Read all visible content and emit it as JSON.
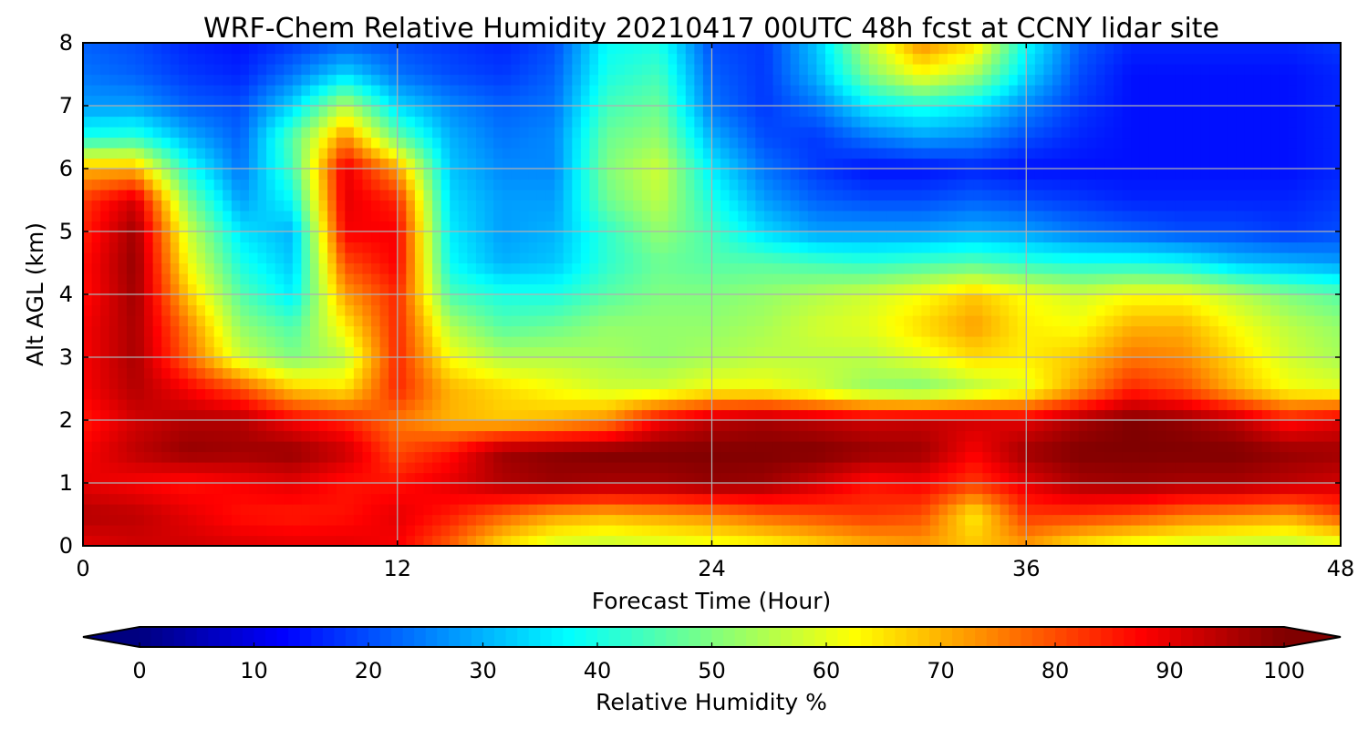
{
  "chart_data": {
    "type": "heatmap",
    "title": "WRF-Chem Relative Humidity 20210417 00UTC 48h fcst at CCNY lidar site",
    "xlabel": "Forecast Time (Hour)",
    "ylabel": "Alt AGL (km)",
    "xlim": [
      0,
      48
    ],
    "ylim": [
      0,
      8
    ],
    "x_ticks": [
      0,
      12,
      24,
      36,
      48
    ],
    "y_ticks": [
      0,
      1,
      2,
      3,
      4,
      5,
      6,
      7,
      8
    ],
    "grid": true,
    "colorbar": {
      "label": "Relative Humidity %",
      "orientation": "horizontal",
      "placement": "bottom",
      "ticks": [
        0,
        10,
        20,
        30,
        40,
        50,
        60,
        70,
        80,
        90,
        100
      ],
      "range": [
        0,
        100
      ],
      "extend": "both",
      "colormap": "jet"
    },
    "x": [
      0,
      2,
      4,
      6,
      8,
      10,
      12,
      14,
      16,
      18,
      20,
      22,
      24,
      26,
      28,
      30,
      32,
      34,
      36,
      38,
      40,
      42,
      44,
      46,
      48
    ],
    "y": [
      0,
      0.5,
      1,
      1.5,
      2,
      2.5,
      3,
      3.5,
      4,
      4.5,
      5,
      5.5,
      6,
      6.5,
      7,
      7.5,
      8
    ],
    "z": [
      [
        90,
        92,
        92,
        91,
        90,
        90,
        88,
        78,
        65,
        58,
        56,
        58,
        60,
        62,
        66,
        70,
        72,
        68,
        72,
        64,
        60,
        58,
        56,
        55,
        58
      ],
      [
        95,
        94,
        90,
        86,
        85,
        86,
        90,
        85,
        78,
        72,
        70,
        72,
        74,
        78,
        80,
        82,
        80,
        64,
        82,
        82,
        80,
        76,
        74,
        72,
        80
      ],
      [
        90,
        88,
        86,
        88,
        90,
        86,
        86,
        90,
        95,
        97,
        96,
        96,
        98,
        97,
        92,
        86,
        88,
        82,
        90,
        96,
        97,
        96,
        96,
        94,
        92
      ],
      [
        88,
        94,
        98,
        97,
        98,
        93,
        80,
        86,
        97,
        99,
        100,
        100,
        100,
        100,
        100,
        98,
        97,
        88,
        97,
        100,
        100,
        100,
        100,
        98,
        97
      ],
      [
        85,
        92,
        95,
        95,
        88,
        84,
        76,
        70,
        68,
        70,
        74,
        88,
        94,
        96,
        94,
        92,
        93,
        92,
        90,
        96,
        100,
        98,
        94,
        86,
        90
      ],
      [
        88,
        95,
        88,
        80,
        68,
        65,
        84,
        70,
        66,
        62,
        58,
        58,
        62,
        62,
        58,
        52,
        50,
        55,
        60,
        72,
        84,
        80,
        70,
        62,
        60
      ],
      [
        88,
        96,
        78,
        58,
        50,
        56,
        84,
        62,
        55,
        55,
        54,
        52,
        54,
        56,
        56,
        56,
        60,
        66,
        64,
        68,
        76,
        74,
        66,
        58,
        54
      ],
      [
        88,
        96,
        75,
        52,
        45,
        64,
        84,
        55,
        46,
        48,
        52,
        52,
        52,
        54,
        58,
        60,
        66,
        72,
        64,
        62,
        70,
        70,
        62,
        56,
        52
      ],
      [
        86,
        97,
        68,
        46,
        36,
        72,
        84,
        45,
        40,
        40,
        46,
        50,
        50,
        52,
        55,
        58,
        62,
        68,
        62,
        58,
        62,
        62,
        56,
        50,
        46
      ],
      [
        86,
        98,
        62,
        40,
        32,
        80,
        88,
        38,
        30,
        32,
        42,
        48,
        46,
        46,
        44,
        42,
        44,
        46,
        42,
        40,
        40,
        38,
        32,
        30,
        28
      ],
      [
        84,
        97,
        58,
        35,
        30,
        88,
        88,
        36,
        28,
        30,
        42,
        52,
        44,
        34,
        28,
        28,
        28,
        30,
        28,
        24,
        22,
        20,
        20,
        18,
        20
      ],
      [
        82,
        92,
        50,
        28,
        38,
        90,
        84,
        34,
        28,
        28,
        48,
        56,
        40,
        28,
        22,
        20,
        20,
        22,
        20,
        18,
        16,
        16,
        16,
        16,
        18
      ],
      [
        70,
        70,
        40,
        24,
        44,
        90,
        72,
        32,
        26,
        26,
        50,
        58,
        36,
        24,
        18,
        14,
        14,
        16,
        14,
        14,
        14,
        14,
        14,
        14,
        16
      ],
      [
        40,
        42,
        30,
        22,
        46,
        74,
        48,
        30,
        24,
        26,
        48,
        52,
        30,
        20,
        18,
        24,
        28,
        26,
        20,
        16,
        14,
        14,
        14,
        14,
        16
      ],
      [
        28,
        28,
        22,
        20,
        34,
        56,
        34,
        26,
        22,
        24,
        44,
        48,
        24,
        18,
        24,
        36,
        40,
        36,
        26,
        18,
        14,
        14,
        14,
        14,
        16
      ],
      [
        24,
        22,
        18,
        16,
        24,
        34,
        24,
        20,
        18,
        22,
        40,
        44,
        22,
        18,
        30,
        50,
        62,
        54,
        34,
        20,
        14,
        14,
        14,
        14,
        16
      ],
      [
        22,
        20,
        16,
        14,
        18,
        22,
        20,
        18,
        16,
        20,
        38,
        40,
        20,
        18,
        32,
        56,
        74,
        66,
        38,
        22,
        16,
        16,
        16,
        16,
        18
      ]
    ]
  }
}
